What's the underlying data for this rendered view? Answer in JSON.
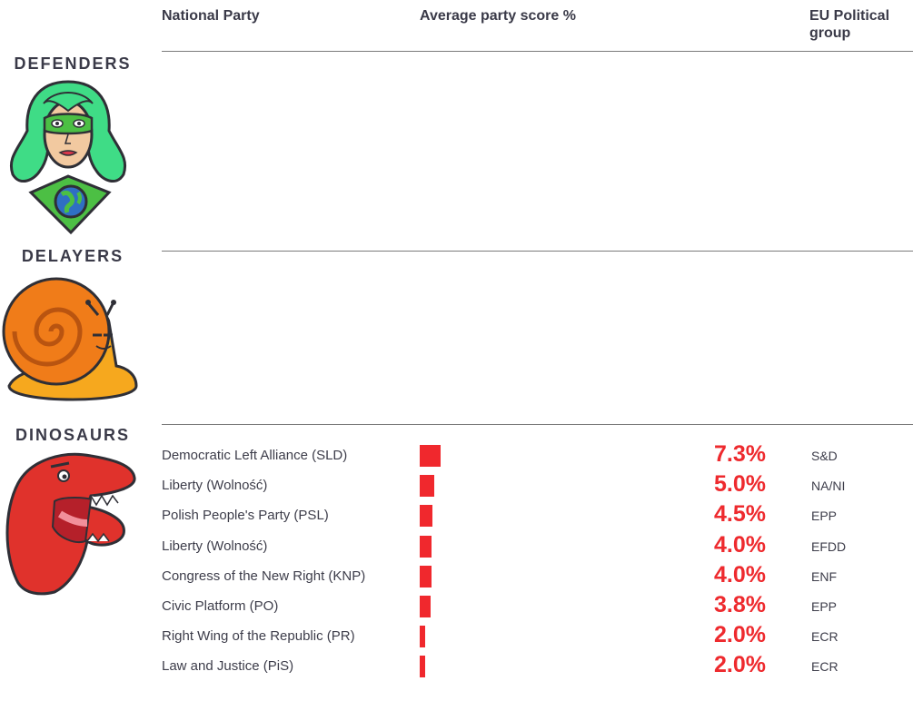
{
  "headers": {
    "party": "National Party",
    "score": "Average party score %",
    "group": "EU Political group"
  },
  "categories": {
    "defenders": "DEFENDERS",
    "delayers": "DELAYERS",
    "dinosaurs": "DINOSAURS"
  },
  "colors": {
    "bar": "#f0282d",
    "value_text": "#ee2a2e",
    "defender_hair": "#3fdc86",
    "snail_shell": "#f07c19",
    "dino": "#e0322c"
  },
  "chart_data": {
    "type": "bar",
    "orientation": "horizontal",
    "section": "DINOSAURS",
    "categories": [
      "Democratic Left Alliance (SLD)",
      "Liberty (Wolność)",
      "Polish People's Party (PSL)",
      "Liberty (Wolność)",
      "Congress of the New Right (KNP)",
      "Civic Platform (PO)",
      "Right Wing of the Republic (PR)",
      "Law and Justice (PiS)"
    ],
    "values": [
      7.3,
      5.0,
      4.5,
      4.0,
      4.0,
      3.8,
      2.0,
      2.0
    ],
    "value_labels": [
      "7.3%",
      "5.0%",
      "4.5%",
      "4.0%",
      "4.0%",
      "3.8%",
      "2.0%",
      "2.0%"
    ],
    "groups": [
      "S&D",
      "NA/NI",
      "EPP",
      "EFDD",
      "ENF",
      "EPP",
      "ECR",
      "ECR"
    ]
  }
}
